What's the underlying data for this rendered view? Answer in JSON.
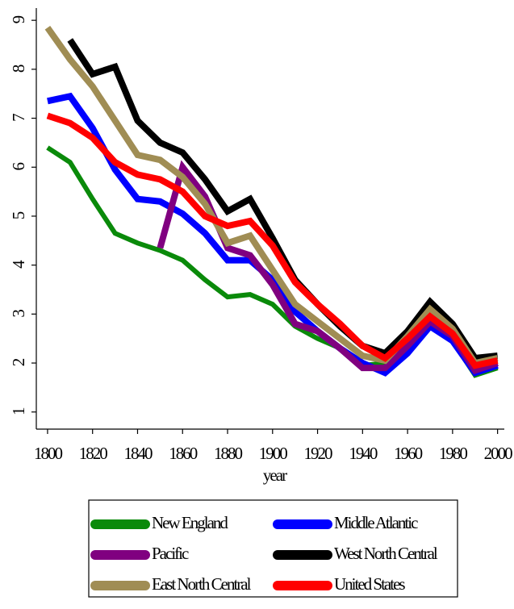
{
  "chart_data": {
    "type": "line",
    "x_label": "year",
    "x": [
      1800,
      1810,
      1820,
      1830,
      1840,
      1850,
      1860,
      1870,
      1880,
      1890,
      1900,
      1910,
      1920,
      1930,
      1940,
      1950,
      1960,
      1970,
      1980,
      1990,
      2000
    ],
    "xlim": [
      1795,
      2003
    ],
    "xticks": [
      1800,
      1820,
      1840,
      1860,
      1880,
      1900,
      1920,
      1940,
      1960,
      1980,
      2000
    ],
    "ylim": [
      0.65,
      9.25
    ],
    "yticks": [
      1,
      2,
      3,
      4,
      5,
      6,
      7,
      8,
      9
    ],
    "series": [
      {
        "name": "New England",
        "color": "#0a8a0a",
        "values": [
          6.4,
          6.1,
          5.35,
          4.65,
          4.45,
          4.3,
          4.1,
          3.7,
          3.35,
          3.4,
          3.2,
          2.75,
          2.5,
          2.3,
          1.95,
          2.0,
          2.4,
          2.75,
          2.45,
          1.75,
          1.9
        ]
      },
      {
        "name": "Middle Atlantic",
        "color": "#0000ff",
        "values": [
          7.35,
          7.45,
          6.8,
          5.95,
          5.35,
          5.3,
          5.05,
          4.65,
          4.1,
          4.1,
          3.7,
          3.05,
          2.65,
          2.3,
          2.0,
          1.8,
          2.2,
          2.75,
          2.45,
          1.8,
          1.95
        ]
      },
      {
        "name": "Pacific",
        "color": "#800080",
        "values": [
          null,
          null,
          null,
          null,
          null,
          4.35,
          6.0,
          5.4,
          4.35,
          4.2,
          3.6,
          2.8,
          2.65,
          2.3,
          1.9,
          1.9,
          2.35,
          2.85,
          2.55,
          1.85,
          2.0
        ]
      },
      {
        "name": "West North Central",
        "color": "#000000",
        "values": [
          null,
          8.6,
          7.9,
          8.05,
          6.95,
          6.5,
          6.3,
          5.75,
          5.1,
          5.35,
          4.55,
          3.7,
          3.2,
          2.75,
          2.35,
          2.2,
          2.65,
          3.25,
          2.8,
          2.1,
          2.15
        ]
      },
      {
        "name": "East North Central",
        "color": "#a08d54",
        "values": [
          8.85,
          8.2,
          7.65,
          6.95,
          6.25,
          6.15,
          5.8,
          5.25,
          4.45,
          4.6,
          3.9,
          3.2,
          2.85,
          2.5,
          2.15,
          2.05,
          2.55,
          3.1,
          2.7,
          2.0,
          2.1
        ]
      },
      {
        "name": "United States",
        "color": "#ff0000",
        "values": [
          7.05,
          6.9,
          6.6,
          6.1,
          5.85,
          5.75,
          5.5,
          5.0,
          4.8,
          4.9,
          4.4,
          3.65,
          3.2,
          2.8,
          2.35,
          2.1,
          2.5,
          2.95,
          2.6,
          1.95,
          2.05
        ]
      }
    ]
  }
}
